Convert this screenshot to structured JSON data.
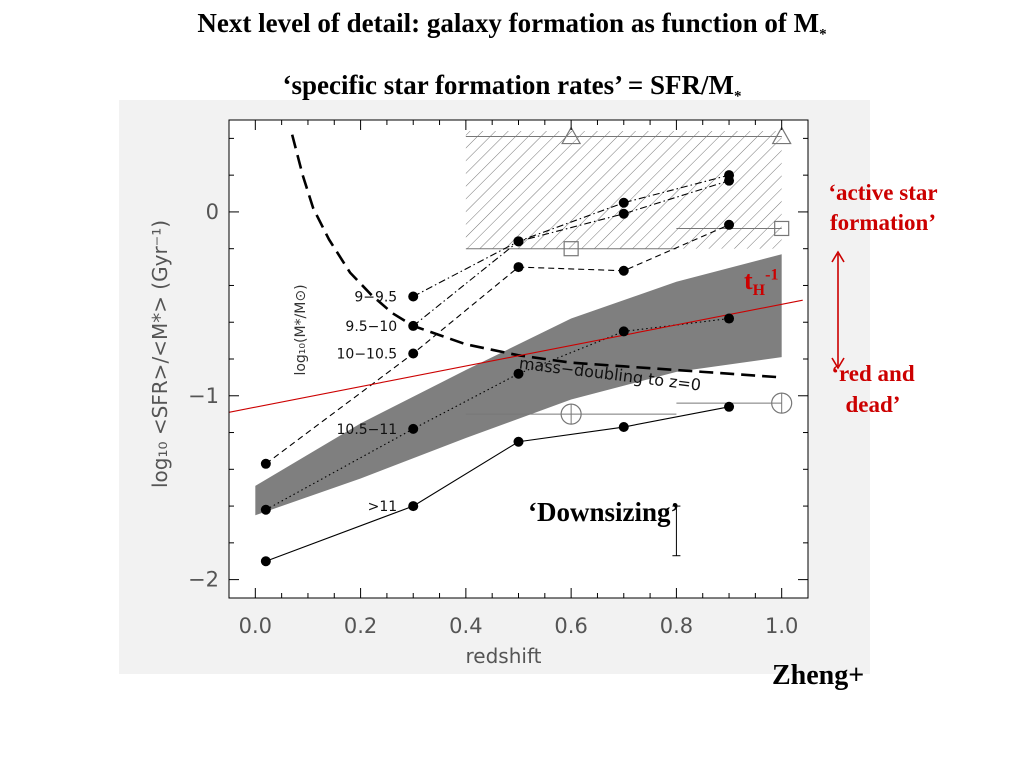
{
  "slide": {
    "title": "Next level of detail: galaxy formation as function of M",
    "title_sub": "*",
    "subtitle": "‘specific star formation rates’ = SFR/M",
    "subtitle_sub": "*"
  },
  "annotations": {
    "active": "‘active star formation’",
    "red_dead": "‘red and dead’",
    "th_main": "t",
    "th_sub": "H",
    "th_sup": "-1",
    "downsizing": "‘Downsizing’",
    "credit": "Zheng+"
  },
  "colors": {
    "annotation_red": "#cc0000",
    "panel_bg": "#f2f2f2",
    "band": "#7f7f7f"
  },
  "chart_data": {
    "type": "line",
    "xlabel": "redshift",
    "ylabel": "log₁₀ <SFR>/<M*>  (Gyr⁻¹)",
    "xlim": [
      -0.05,
      1.05
    ],
    "ylim": [
      -2.1,
      0.5
    ],
    "x_ticks": [
      "0.0",
      "0.2",
      "0.4",
      "0.6",
      "0.8",
      "1.0"
    ],
    "y_ticks": [
      "0",
      "−1",
      "−2"
    ],
    "mass_label": "log₁₀(M*/M⊙)",
    "series": [
      {
        "name": "9−9.5",
        "style": "dot-dash",
        "x": [
          0.3,
          0.5,
          0.7,
          0.9
        ],
        "y": [
          -0.46,
          -0.16,
          0.05,
          0.2
        ]
      },
      {
        "name": "9.5−10",
        "style": "dot-dash",
        "x": [
          0.3,
          0.5,
          0.7,
          0.9
        ],
        "y": [
          -0.62,
          -0.16,
          -0.01,
          0.17
        ]
      },
      {
        "name": "10−10.5",
        "style": "dashed",
        "x": [
          0.02,
          0.3,
          0.5,
          0.7,
          0.9
        ],
        "y": [
          -1.37,
          -0.77,
          -0.3,
          -0.32,
          -0.07
        ]
      },
      {
        "name": "10.5−11",
        "style": "dotted",
        "x": [
          0.02,
          0.3,
          0.5,
          0.7,
          0.9
        ],
        "y": [
          -1.62,
          -1.18,
          -0.88,
          -0.65,
          -0.58
        ]
      },
      {
        "name": ">11",
        "style": "solid",
        "x": [
          0.02,
          0.3,
          0.5,
          0.7,
          0.9
        ],
        "y": [
          -1.9,
          -1.6,
          -1.25,
          -1.17,
          -1.06
        ]
      }
    ],
    "band": {
      "x": [
        0.0,
        0.2,
        0.4,
        0.6,
        0.8,
        1.0
      ],
      "y_upper": [
        -1.49,
        -1.15,
        -0.86,
        -0.58,
        -0.38,
        -0.23
      ],
      "y_lower": [
        -1.65,
        -1.45,
        -1.23,
        -1.02,
        -0.87,
        -0.79
      ]
    },
    "mass_doubling_curve": {
      "label": "mass−doubling to z=0",
      "x": [
        0.07,
        0.09,
        0.11,
        0.14,
        0.18,
        0.22,
        0.26,
        0.3,
        0.35,
        0.4,
        0.45,
        0.5,
        0.55,
        0.6,
        0.65,
        0.7,
        0.75,
        0.8,
        0.85,
        0.9,
        0.95,
        1.0
      ],
      "y": [
        0.42,
        0.2,
        0.02,
        -0.15,
        -0.33,
        -0.45,
        -0.55,
        -0.62,
        -0.67,
        -0.72,
        -0.75,
        -0.78,
        -0.8,
        -0.82,
        -0.83,
        -0.84,
        -0.85,
        -0.86,
        -0.87,
        -0.88,
        -0.89,
        -0.9
      ]
    },
    "hubble_time_line": {
      "label": "t_H^-1",
      "x": [
        -0.05,
        1.04
      ],
      "y": [
        -1.09,
        -0.48
      ]
    },
    "hatched_region": {
      "x": [
        0.4,
        1.0
      ],
      "y": [
        -0.2,
        0.44
      ]
    },
    "open_markers": [
      {
        "shape": "triangle",
        "x": 0.6,
        "y": 0.41,
        "xerr": [
          0.4,
          1.0
        ]
      },
      {
        "shape": "triangle",
        "x": 1.0,
        "y": 0.41,
        "xerr": [
          0.8,
          1.0
        ]
      },
      {
        "shape": "square",
        "x": 0.6,
        "y": -0.2,
        "xerr": [
          0.4,
          0.8
        ]
      },
      {
        "shape": "square",
        "x": 1.0,
        "y": -0.09,
        "xerr": [
          0.8,
          1.0
        ]
      },
      {
        "shape": "circle",
        "x": 0.6,
        "y": -1.1,
        "xerr": [
          0.4,
          0.8
        ]
      },
      {
        "shape": "circle",
        "x": 1.0,
        "y": -1.04,
        "xerr": [
          0.8,
          1.0
        ]
      }
    ],
    "error_bar": {
      "x": 0.8,
      "y_low": -1.87,
      "y_high": -1.6
    }
  }
}
